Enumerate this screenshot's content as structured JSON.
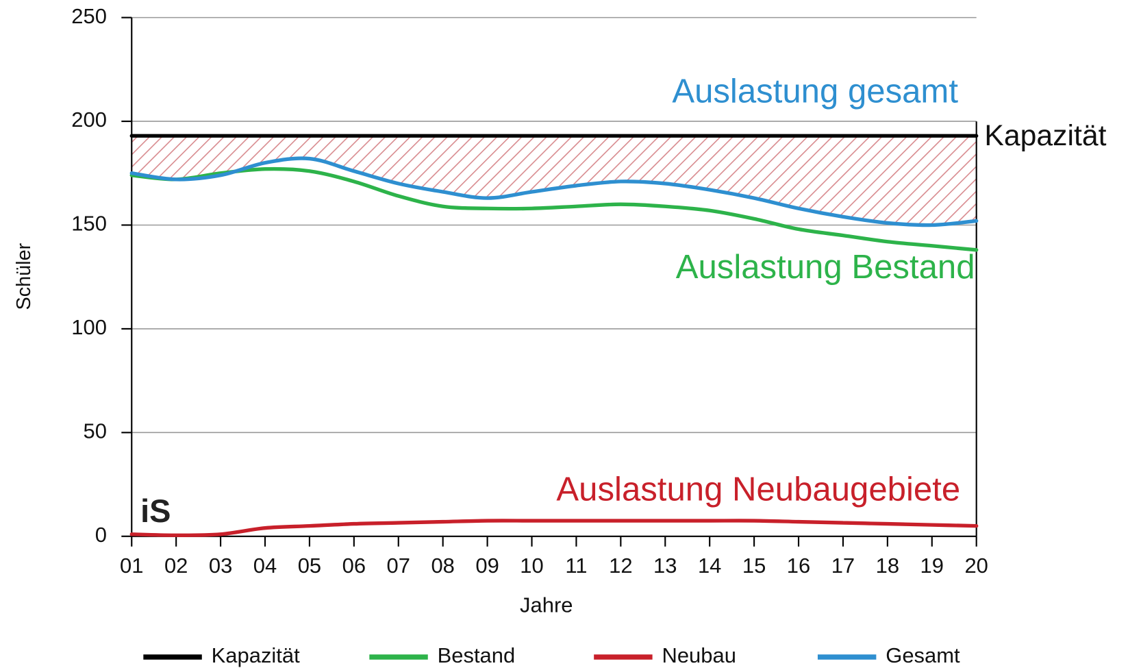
{
  "chart_data": {
    "type": "line",
    "y_label": "Schüler",
    "x_label": "Jahre",
    "logo": "iS",
    "categories": [
      "01",
      "02",
      "03",
      "04",
      "05",
      "06",
      "07",
      "08",
      "09",
      "10",
      "11",
      "12",
      "13",
      "14",
      "15",
      "16",
      "17",
      "18",
      "19",
      "20"
    ],
    "series": [
      {
        "name": "Kapazität",
        "color": "#000000",
        "values": [
          193,
          193,
          193,
          193,
          193,
          193,
          193,
          193,
          193,
          193,
          193,
          193,
          193,
          193,
          193,
          193,
          193,
          193,
          193,
          193
        ]
      },
      {
        "name": "Bestand",
        "color": "#2db34a",
        "values": [
          174,
          172,
          175,
          177,
          176,
          171,
          164,
          159,
          158,
          158,
          159,
          160,
          159,
          157,
          153,
          148,
          145,
          142,
          140,
          138
        ]
      },
      {
        "name": "Neubau",
        "color": "#c8202a",
        "values": [
          1,
          0.5,
          1,
          4,
          5,
          6,
          6.5,
          7,
          7.5,
          7.5,
          7.5,
          7.5,
          7.5,
          7.5,
          7.5,
          7,
          6.5,
          6,
          5.5,
          5
        ]
      },
      {
        "name": "Gesamt",
        "color": "#2e8fd0",
        "values": [
          175,
          172,
          174,
          180,
          182,
          176,
          170,
          166,
          163,
          166,
          169,
          171,
          170,
          167,
          163,
          158,
          154,
          151,
          150,
          152
        ]
      }
    ],
    "annotations": [
      {
        "text": "Auslastung gesamt",
        "series": 3
      },
      {
        "text": "Kapazität",
        "series": 0
      },
      {
        "text": "Auslastung Bestand",
        "series": 1
      },
      {
        "text": "Auslastung Neubaugebiete",
        "series": 2
      }
    ],
    "ylim": [
      0,
      250
    ],
    "yticks": [
      0,
      50,
      100,
      150,
      200,
      250
    ],
    "grid": true,
    "legend": "bottom"
  }
}
